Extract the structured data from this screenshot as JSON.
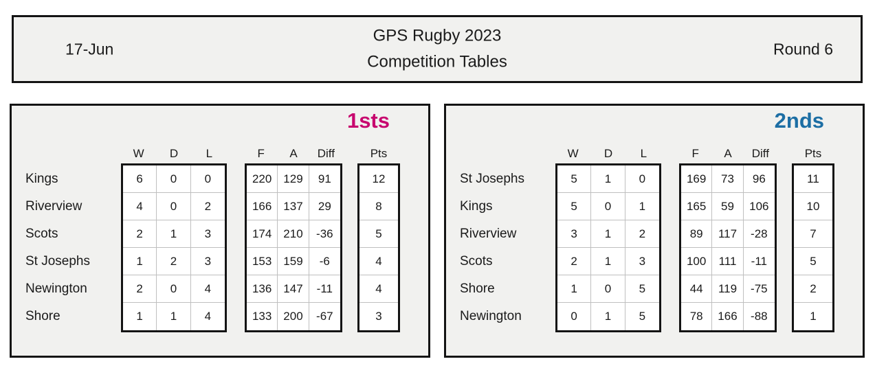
{
  "header": {
    "date": "17-Jun",
    "title_line1": "GPS Rugby 2023",
    "title_line2": "Competition Tables",
    "round": "Round 6"
  },
  "columns": {
    "w": "W",
    "d": "D",
    "l": "L",
    "f": "F",
    "a": "A",
    "diff": "Diff",
    "pts": "Pts"
  },
  "colors": {
    "firsts_accent": "#c7066e",
    "seconds_accent": "#1c6ea4",
    "panel_bg": "#f1f1ef",
    "border": "#141414",
    "gridline": "#bfbfbf"
  },
  "tables": [
    {
      "id": "1sts",
      "title": "1sts",
      "accent": "#c7066e",
      "rows": [
        {
          "team": "Kings",
          "w": 6,
          "d": 0,
          "l": 0,
          "f": 220,
          "a": 129,
          "diff": 91,
          "pts": 12
        },
        {
          "team": "Riverview",
          "w": 4,
          "d": 0,
          "l": 2,
          "f": 166,
          "a": 137,
          "diff": 29,
          "pts": 8
        },
        {
          "team": "Scots",
          "w": 2,
          "d": 1,
          "l": 3,
          "f": 174,
          "a": 210,
          "diff": -36,
          "pts": 5
        },
        {
          "team": "St Josephs",
          "w": 1,
          "d": 2,
          "l": 3,
          "f": 153,
          "a": 159,
          "diff": -6,
          "pts": 4
        },
        {
          "team": "Newington",
          "w": 2,
          "d": 0,
          "l": 4,
          "f": 136,
          "a": 147,
          "diff": -11,
          "pts": 4
        },
        {
          "team": "Shore",
          "w": 1,
          "d": 1,
          "l": 4,
          "f": 133,
          "a": 200,
          "diff": -67,
          "pts": 3
        }
      ]
    },
    {
      "id": "2nds",
      "title": "2nds",
      "accent": "#1c6ea4",
      "rows": [
        {
          "team": "St Josephs",
          "w": 5,
          "d": 1,
          "l": 0,
          "f": 169,
          "a": 73,
          "diff": 96,
          "pts": 11
        },
        {
          "team": "Kings",
          "w": 5,
          "d": 0,
          "l": 1,
          "f": 165,
          "a": 59,
          "diff": 106,
          "pts": 10
        },
        {
          "team": "Riverview",
          "w": 3,
          "d": 1,
          "l": 2,
          "f": 89,
          "a": 117,
          "diff": -28,
          "pts": 7
        },
        {
          "team": "Scots",
          "w": 2,
          "d": 1,
          "l": 3,
          "f": 100,
          "a": 111,
          "diff": -11,
          "pts": 5
        },
        {
          "team": "Shore",
          "w": 1,
          "d": 0,
          "l": 5,
          "f": 44,
          "a": 119,
          "diff": -75,
          "pts": 2
        },
        {
          "team": "Newington",
          "w": 0,
          "d": 1,
          "l": 5,
          "f": 78,
          "a": 166,
          "diff": -88,
          "pts": 1
        }
      ]
    }
  ]
}
